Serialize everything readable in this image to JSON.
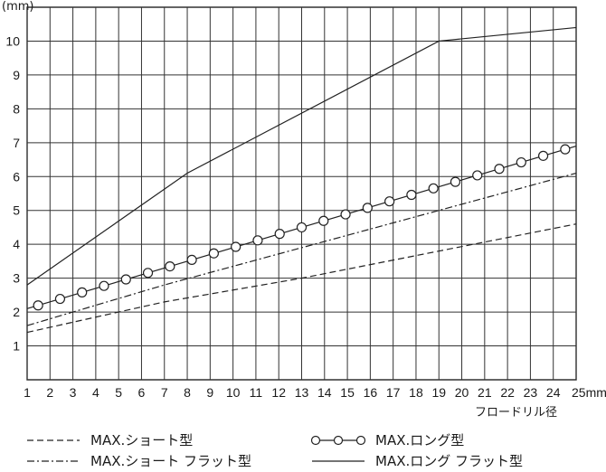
{
  "chart_data": {
    "type": "line",
    "ylabel": "(mm)",
    "xlabel": "フロードリル径",
    "x_unit": "mm",
    "xlim": [
      1,
      25
    ],
    "ylim": [
      0,
      11
    ],
    "x_ticks": [
      1,
      2,
      3,
      4,
      5,
      6,
      7,
      8,
      9,
      10,
      11,
      12,
      13,
      14,
      15,
      16,
      17,
      18,
      19,
      20,
      21,
      22,
      23,
      24,
      25
    ],
    "y_ticks": [
      1,
      2,
      3,
      4,
      5,
      6,
      7,
      8,
      9,
      10
    ],
    "grid": true,
    "legend_position": "bottom",
    "series": [
      {
        "name": "MAX.ショート型",
        "style": "dashed",
        "x": [
          1,
          7,
          13,
          19,
          25
        ],
        "y": [
          1.4,
          2.3,
          3.0,
          3.8,
          4.6
        ]
      },
      {
        "name": "MAX.ロング型",
        "style": "circles",
        "x": [
          1,
          25
        ],
        "y": [
          2.1,
          6.9
        ]
      },
      {
        "name": "MAX.ショート フラット型",
        "style": "dash-dot",
        "x": [
          1,
          7,
          13,
          19,
          25
        ],
        "y": [
          1.6,
          2.8,
          3.9,
          5.0,
          6.1
        ]
      },
      {
        "name": "MAX.ロング フラット型",
        "style": "solid",
        "x": [
          1,
          8,
          19,
          25
        ],
        "y": [
          2.8,
          6.1,
          10.0,
          10.4
        ]
      }
    ]
  }
}
